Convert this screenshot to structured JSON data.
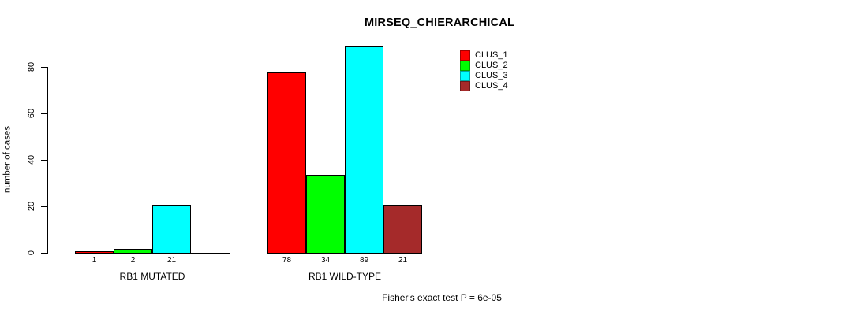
{
  "title": "MIRSEQ_CHIERARCHICAL",
  "footer": "Fisher's exact test P = 6e-05",
  "chart_data": {
    "type": "bar",
    "title": "MIRSEQ_CHIERARCHICAL",
    "xlabel": "",
    "ylabel": "number of cases",
    "ylim": [
      0,
      90
    ],
    "yticks": [
      0,
      20,
      40,
      60,
      80
    ],
    "ytick_labels": [
      "0",
      "20",
      "40",
      "60",
      "80"
    ],
    "grid": false,
    "legend_position": "top-right",
    "legend": [
      {
        "label": "CLUS_1",
        "color": "#ff0000"
      },
      {
        "label": "CLUS_2",
        "color": "#00ff00"
      },
      {
        "label": "CLUS_3",
        "color": "#00ffff"
      },
      {
        "label": "CLUS_4",
        "color": "#a52a2a"
      }
    ],
    "groups": [
      {
        "label": "RB1 MUTATED",
        "values": [
          1,
          2,
          21,
          0
        ],
        "bar_labels": [
          "1",
          "2",
          "21",
          ""
        ]
      },
      {
        "label": "RB1 WILD-TYPE",
        "values": [
          78,
          34,
          89,
          21
        ],
        "bar_labels": [
          "78",
          "34",
          "89",
          "21"
        ]
      }
    ],
    "annotation": "Fisher's exact test P = 6e-05"
  }
}
